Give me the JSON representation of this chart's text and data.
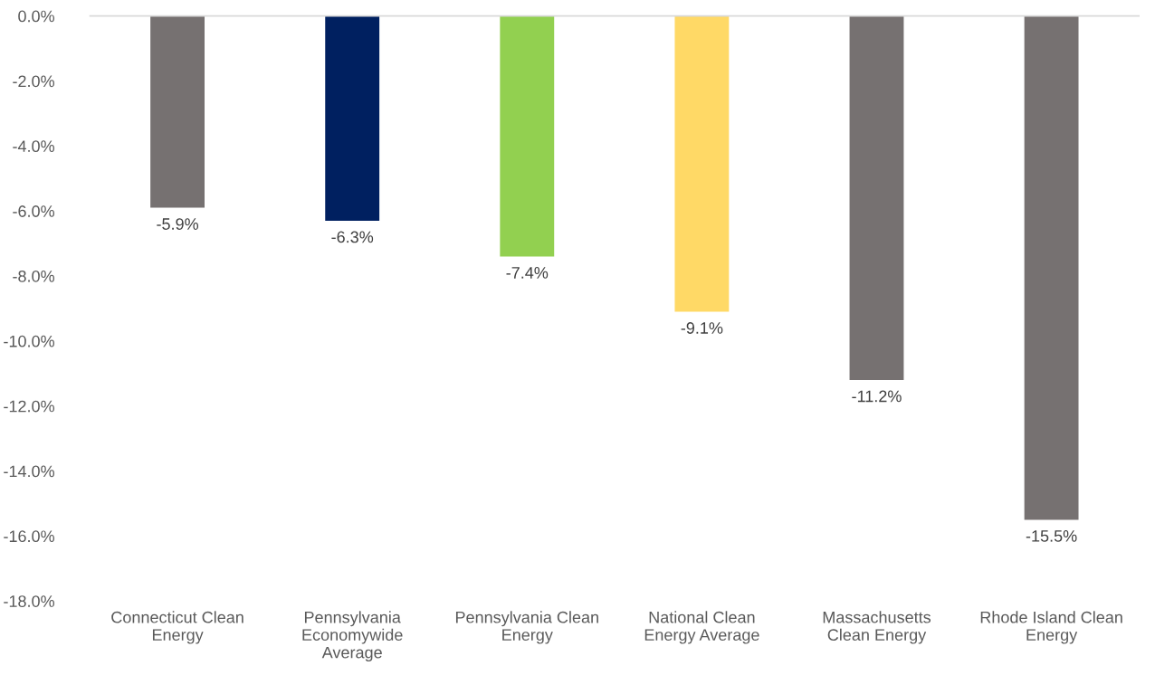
{
  "chart_data": {
    "type": "bar",
    "categories": [
      "Connecticut Clean\nEnergy",
      "Pennsylvania\nEconomywide\nAverage",
      "Pennsylvania Clean\nEnergy",
      "National Clean\nEnergy Average",
      "Massachusetts\nClean Energy",
      "Rhode Island Clean\nEnergy"
    ],
    "values": [
      -5.9,
      -6.3,
      -7.4,
      -9.1,
      -11.2,
      -15.5
    ],
    "colors": [
      "#767171",
      "#002060",
      "#92d050",
      "#ffd966",
      "#767171",
      "#767171"
    ],
    "value_labels": [
      "-5.9%",
      "-6.3%",
      "-7.4%",
      "-9.1%",
      "-11.2%",
      "-15.5%"
    ],
    "ylim": [
      -18,
      0
    ],
    "yticks": [
      {
        "value": 0,
        "label": "0.0%"
      },
      {
        "value": -2,
        "label": "-2.0%"
      },
      {
        "value": -4,
        "label": "-4.0%"
      },
      {
        "value": -6,
        "label": "-6.0%"
      },
      {
        "value": -8,
        "label": "-8.0%"
      },
      {
        "value": -10,
        "label": "-10.0%"
      },
      {
        "value": -12,
        "label": "-12.0%"
      },
      {
        "value": -14,
        "label": "-14.0%"
      },
      {
        "value": -16,
        "label": "-16.0%"
      },
      {
        "value": -18,
        "label": "-18.0%"
      }
    ],
    "grid": false
  }
}
